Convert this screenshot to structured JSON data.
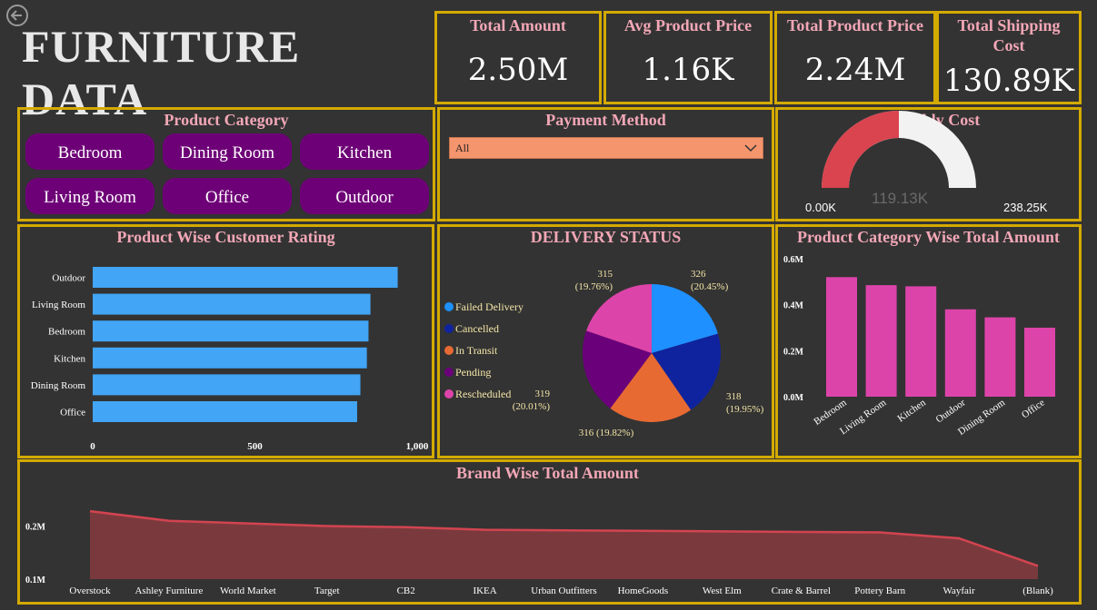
{
  "title": "FURNITURE DATA",
  "kpis": [
    {
      "label": "Total Amount",
      "value": "2.50M"
    },
    {
      "label": "Avg Product Price",
      "value": "1.16K"
    },
    {
      "label": "Total Product Price",
      "value": "2.24M"
    },
    {
      "label": "Total Shipping Cost",
      "value": "130.89K"
    }
  ],
  "category_slicer": {
    "title": "Product Category",
    "items": [
      "Bedroom",
      "Dining Room",
      "Kitchen",
      "Living Room",
      "Office",
      "Outdoor"
    ]
  },
  "payment": {
    "title": "Payment Method",
    "selected": "All"
  },
  "assembly": {
    "title": "Assembly Cost",
    "min_label": "0.00K",
    "max_label": "238.25K",
    "value_label": "119.13K",
    "value": 119.13,
    "max": 238.25,
    "colors": {
      "fill": "#d9444f",
      "track": "#f2f2f2"
    }
  },
  "colors": {
    "accent": "#d4aa00",
    "title": "#f2a7b6",
    "button": "#6e0077",
    "bar_blue": "#42a5f5",
    "bar_pink": "#dd44aa",
    "area": "#7a3a3d",
    "area_line": "#d24450"
  },
  "chart_data": [
    {
      "type": "bar",
      "orientation": "horizontal",
      "title": "Product Wise Customer Rating",
      "categories": [
        "Outdoor",
        "Living Room",
        "Bedroom",
        "Kitchen",
        "Dining Room",
        "Office"
      ],
      "values": [
        940,
        856,
        850,
        845,
        825,
        815
      ],
      "xlim": [
        0,
        1000
      ],
      "xticks": [
        "0",
        "500",
        "1,000"
      ]
    },
    {
      "type": "pie",
      "title": "DELIVERY STATUS",
      "legend_position": "left",
      "slices": [
        {
          "name": "Failed Delivery",
          "value": 326,
          "label_count": "326",
          "label_pct": "(20.45%)",
          "color": "#1e90ff"
        },
        {
          "name": "Cancelled",
          "value": 318,
          "label_count": "318",
          "label_pct": "(19.95%)",
          "color": "#10239e"
        },
        {
          "name": "In Transit",
          "value": 316,
          "label_count": "316 (19.82%)",
          "label_pct": "",
          "color": "#e86a33"
        },
        {
          "name": "Pending",
          "value": 319,
          "label_count": "319",
          "label_pct": "(20.01%)",
          "color": "#6b007b"
        },
        {
          "name": "Rescheduled",
          "value": 315,
          "label_count": "315",
          "label_pct": "(19.76%)",
          "color": "#dd44aa"
        }
      ]
    },
    {
      "type": "bar",
      "title": "Product Category Wise Total Amount",
      "categories": [
        "Bedroom",
        "Living Room",
        "Kitchen",
        "Outdoor",
        "Dining Room",
        "Office"
      ],
      "values": [
        0.52,
        0.485,
        0.48,
        0.38,
        0.345,
        0.3
      ],
      "ylim": [
        0,
        0.6
      ],
      "yticks": [
        "0.0M",
        "0.2M",
        "0.4M",
        "0.6M"
      ]
    },
    {
      "type": "area",
      "title": "Brand Wise Total Amount",
      "categories": [
        "Overstock",
        "Ashley Furniture",
        "World Market",
        "Target",
        "CB2",
        "IKEA",
        "Urban Outfitters",
        "HomeGoods",
        "West Elm",
        "Crate & Barrel",
        "Pottery Barn",
        "Wayfair",
        "(Blank)"
      ],
      "values": [
        0.228,
        0.21,
        0.205,
        0.2,
        0.198,
        0.193,
        0.192,
        0.191,
        0.19,
        0.189,
        0.188,
        0.177,
        0.125
      ],
      "ylim": [
        0.1,
        0.23
      ],
      "yticks": [
        "0.1M",
        "0.2M"
      ]
    }
  ]
}
